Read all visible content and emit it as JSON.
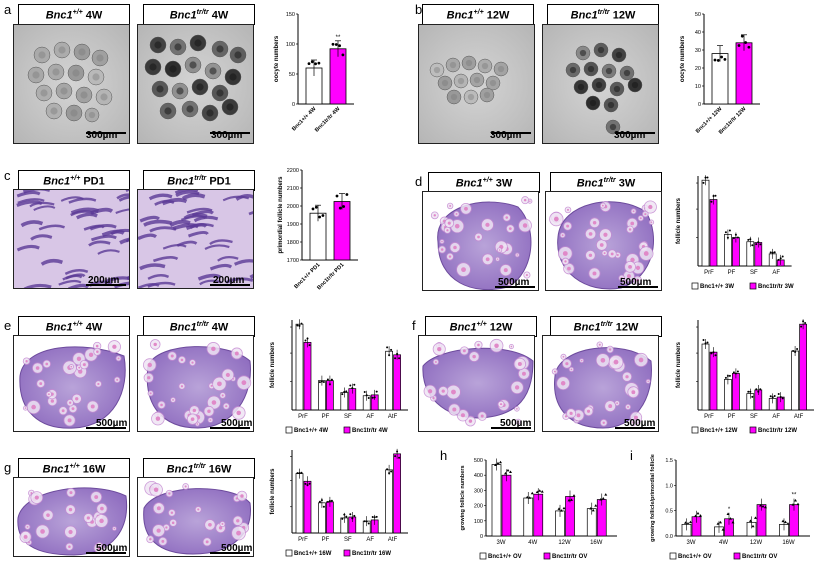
{
  "panels": {
    "a": {
      "letter": "a",
      "label_wt": "4W",
      "label_tr": "4W",
      "scale": "300µm",
      "chart": {
        "ylabel": "oocyte numbers",
        "yticks": [
          "0",
          "50",
          "100",
          "150"
        ],
        "ymax": 150,
        "cats": [
          "Bnc1+/+ 4W",
          "Bnc1tr/tr 4W"
        ],
        "values": [
          60,
          92
        ],
        "sig": "**"
      }
    },
    "b": {
      "letter": "b",
      "label_wt": "12W",
      "label_tr": "12W",
      "scale": "300µm",
      "chart": {
        "ylabel": "oocyte numbers",
        "yticks": [
          "0",
          "10",
          "20",
          "30",
          "40",
          "50"
        ],
        "ymax": 50,
        "cats": [
          "Bnc1+/+ 12W",
          "Bnc1tr/tr 12W"
        ],
        "values": [
          28,
          34
        ]
      }
    },
    "c": {
      "letter": "c",
      "label_wt": "PD1",
      "label_tr": "PD1",
      "scale": "200µm",
      "chart": {
        "ylabel": "primordial follicle numbers",
        "yticks": [
          "1700",
          "1800",
          "1900",
          "2000",
          "2100",
          "2200"
        ],
        "ymin": 1700,
        "ymax": 2200,
        "cats": [
          "Bnc1+/+ PD1",
          "Bnc1tr/tr PD1"
        ],
        "values": [
          1960,
          2025
        ]
      }
    },
    "d": {
      "letter": "d",
      "label_wt": "3W",
      "label_tr": "3W",
      "scale": "500µm",
      "legend": [
        "Bnc1+/+ 3W",
        "Bnc1tr/tr 3W"
      ]
    },
    "e": {
      "letter": "e",
      "label_wt": "4W",
      "label_tr": "4W",
      "scale": "500µm",
      "legend": [
        "Bnc1+/+ 4W",
        "Bnc1tr/tr 4W"
      ]
    },
    "f": {
      "letter": "f",
      "label_wt": "12W",
      "label_tr": "12W",
      "scale": "500µm",
      "legend": [
        "Bnc1+/+ 12W",
        "Bnc1tr/tr 12W"
      ]
    },
    "g": {
      "letter": "g",
      "label_wt": "16W",
      "label_tr": "16W",
      "scale": "500µm",
      "legend": [
        "Bnc1+/+ 16W",
        "Bnc1tr/tr 16W"
      ]
    },
    "h": {
      "letter": "h"
    },
    "i": {
      "letter": "i"
    }
  },
  "gene": "Bnc1",
  "wt_sup": "+/+",
  "tr_sup": "tr/tr",
  "follicle_ylabel": "follicle numbers",
  "follicle_cats": [
    "PrF",
    "PF",
    "SF",
    "AF",
    "AtF"
  ],
  "chart_data": [
    {
      "type": "bar",
      "panel": "a",
      "ylabel": "oocyte numbers",
      "categories": [
        "Bnc1+/+ 4W",
        "Bnc1tr/tr 4W"
      ],
      "values": [
        60,
        92
      ],
      "ylim": [
        0,
        150
      ]
    },
    {
      "type": "bar",
      "panel": "b",
      "ylabel": "oocyte numbers",
      "categories": [
        "Bnc1+/+ 12W",
        "Bnc1tr/tr 12W"
      ],
      "values": [
        28,
        34
      ],
      "ylim": [
        0,
        50
      ]
    },
    {
      "type": "bar",
      "panel": "c",
      "ylabel": "primordial follicle numbers",
      "categories": [
        "Bnc1+/+ PD1",
        "Bnc1tr/tr PD1"
      ],
      "values": [
        1960,
        2025
      ],
      "ylim": [
        1700,
        2200
      ]
    },
    {
      "type": "bar",
      "panel": "d",
      "ylabel": "follicle numbers",
      "categories": [
        "PrF",
        "PF",
        "SF",
        "AF"
      ],
      "series": [
        {
          "name": "Bnc1+/+ 3W",
          "values": [
            2000,
            270,
            160,
            40
          ]
        },
        {
          "name": "Bnc1tr/tr 3W",
          "values": [
            1200,
            220,
            150,
            10
          ]
        }
      ]
    },
    {
      "type": "bar",
      "panel": "e",
      "ylabel": "follicle numbers",
      "categories": [
        "PrF",
        "PF",
        "SF",
        "AF",
        "AtF"
      ],
      "series": [
        {
          "name": "Bnc1+/+ 4W",
          "values": [
            1450,
            170,
            60,
            40,
            680
          ]
        },
        {
          "name": "Bnc1tr/tr 4W",
          "values": [
            900,
            170,
            90,
            45,
            600
          ]
        }
      ]
    },
    {
      "type": "bar",
      "panel": "f",
      "ylabel": "follicle numbers",
      "categories": [
        "PrF",
        "PF",
        "SF",
        "AF",
        "AtF"
      ],
      "series": [
        {
          "name": "Bnc1+/+ 12W",
          "values": [
            650,
            140,
            40,
            20,
            520
          ]
        },
        {
          "name": "Bnc1tr/tr 12W",
          "values": [
            500,
            200,
            60,
            25,
            1100
          ]
        }
      ]
    },
    {
      "type": "bar",
      "panel": "g",
      "ylabel": "follicle numbers",
      "categories": [
        "PrF",
        "PF",
        "SF",
        "AF",
        "AtF"
      ],
      "series": [
        {
          "name": "Bnc1+/+ 16W",
          "values": [
            620,
            160,
            40,
            25,
            700
          ]
        },
        {
          "name": "Bnc1tr/tr 16W",
          "values": [
            470,
            170,
            45,
            30,
            1100
          ]
        }
      ]
    },
    {
      "type": "bar",
      "panel": "h",
      "ylabel": "growing follicle numbers",
      "yticks": [
        "0",
        "100",
        "200",
        "300",
        "400",
        "500"
      ],
      "ylim": [
        0,
        500
      ],
      "categories": [
        "3W",
        "4W",
        "12W",
        "16W"
      ],
      "series": [
        {
          "name": "Bnc1+/+ OV",
          "values": [
            470,
            250,
            165,
            180
          ]
        },
        {
          "name": "Bnc1tr/tr OV",
          "values": [
            400,
            275,
            260,
            240
          ]
        }
      ],
      "sig": [
        "",
        "",
        "",
        ""
      ]
    },
    {
      "type": "bar",
      "panel": "i",
      "ylabel": "growing follicle/primordial follicle",
      "yticks": [
        "0.0",
        "0.5",
        "1.0",
        "1.5"
      ],
      "ylim": [
        0,
        1.5
      ],
      "categories": [
        "3W",
        "4W",
        "12W",
        "16W"
      ],
      "series": [
        {
          "name": "Bnc1+/+ OV",
          "values": [
            0.23,
            0.18,
            0.27,
            0.23
          ]
        },
        {
          "name": "Bnc1tr/tr OV",
          "values": [
            0.38,
            0.34,
            0.62,
            0.62
          ]
        }
      ],
      "sig": [
        "",
        "*",
        "",
        "**"
      ]
    }
  ],
  "colors": {
    "wt": "#ffffff",
    "tr": "#ff00ff",
    "stroke": "#000000"
  }
}
